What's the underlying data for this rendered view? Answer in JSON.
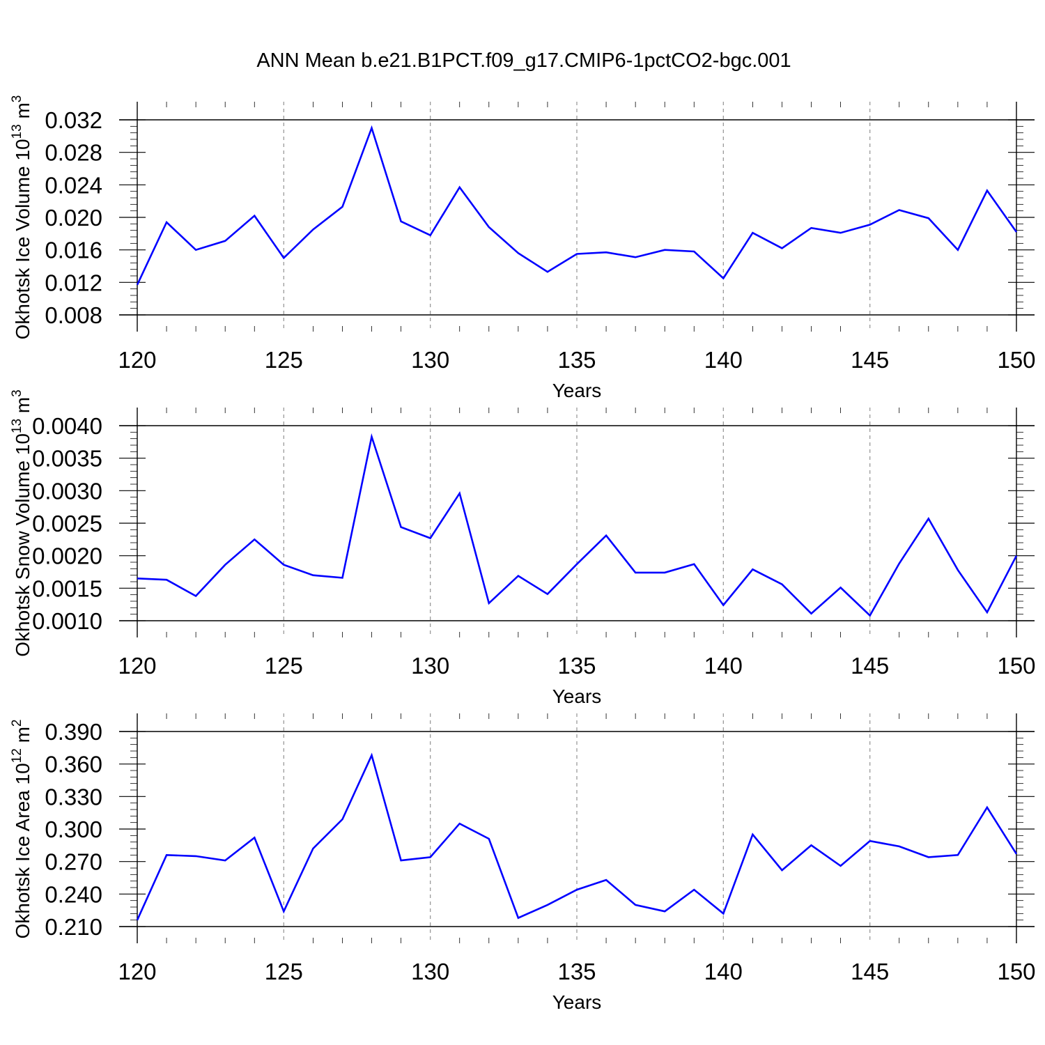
{
  "title": "ANN Mean b.e21.B1PCT.f09_g17.CMIP6-1pctCO2-bgc.001",
  "colors": {
    "series": "#0000ff",
    "frame": "#000000",
    "grid": "#9a9a9a"
  },
  "chart_data": [
    {
      "type": "line",
      "xlabel": "Years",
      "ylabel_main": "Okhotsk Ice Volume 10",
      "ylabel_sup": "13",
      "ylabel_unit": "m",
      "ylabel_unit_sup": "3",
      "xlim": [
        120,
        150
      ],
      "ylim": [
        0.008,
        0.032
      ],
      "x_ticks": [
        "120",
        "125",
        "130",
        "135",
        "140",
        "145",
        "150"
      ],
      "y_ticks": [
        "0.008",
        "0.012",
        "0.016",
        "0.020",
        "0.024",
        "0.028",
        "0.032"
      ],
      "grid": "vertical dashed at major x ticks",
      "x": [
        120,
        121,
        122,
        123,
        124,
        125,
        126,
        127,
        128,
        129,
        130,
        131,
        132,
        133,
        134,
        135,
        136,
        137,
        138,
        139,
        140,
        141,
        142,
        143,
        144,
        145,
        146,
        147,
        148,
        149,
        150
      ],
      "values": [
        0.0117,
        0.0194,
        0.016,
        0.0171,
        0.0202,
        0.015,
        0.0185,
        0.0213,
        0.031,
        0.0195,
        0.0178,
        0.0237,
        0.0188,
        0.0156,
        0.0133,
        0.0155,
        0.0157,
        0.0151,
        0.016,
        0.0158,
        0.0125,
        0.0181,
        0.0162,
        0.0187,
        0.0181,
        0.0191,
        0.0209,
        0.0199,
        0.016,
        0.0233,
        0.0182
      ]
    },
    {
      "type": "line",
      "xlabel": "Years",
      "ylabel_main": "Okhotsk Snow Volume 10",
      "ylabel_sup": "13",
      "ylabel_unit": "m",
      "ylabel_unit_sup": "3",
      "xlim": [
        120,
        150
      ],
      "ylim": [
        0.001,
        0.004
      ],
      "x_ticks": [
        "120",
        "125",
        "130",
        "135",
        "140",
        "145",
        "150"
      ],
      "y_ticks": [
        "0.0010",
        "0.0015",
        "0.0020",
        "0.0025",
        "0.0030",
        "0.0035",
        "0.0040"
      ],
      "grid": "vertical dashed at major x ticks",
      "x": [
        120,
        121,
        122,
        123,
        124,
        125,
        126,
        127,
        128,
        129,
        130,
        131,
        132,
        133,
        134,
        135,
        136,
        137,
        138,
        139,
        140,
        141,
        142,
        143,
        144,
        145,
        146,
        147,
        148,
        149,
        150
      ],
      "values": [
        0.00165,
        0.00163,
        0.00138,
        0.00186,
        0.00225,
        0.00186,
        0.0017,
        0.00166,
        0.00383,
        0.00244,
        0.00227,
        0.00296,
        0.00127,
        0.00169,
        0.00141,
        0.00187,
        0.00231,
        0.00174,
        0.00174,
        0.00187,
        0.00124,
        0.00179,
        0.00156,
        0.00111,
        0.00151,
        0.00108,
        0.00188,
        0.00257,
        0.00178,
        0.00113,
        0.002
      ]
    },
    {
      "type": "line",
      "xlabel": "Years",
      "ylabel_main": "Okhotsk Ice Area 10",
      "ylabel_sup": "12",
      "ylabel_unit": "m",
      "ylabel_unit_sup": "2",
      "xlim": [
        120,
        150
      ],
      "ylim": [
        0.21,
        0.39
      ],
      "x_ticks": [
        "120",
        "125",
        "130",
        "135",
        "140",
        "145",
        "150"
      ],
      "y_ticks": [
        "0.210",
        "0.240",
        "0.270",
        "0.300",
        "0.330",
        "0.360",
        "0.390"
      ],
      "grid": "vertical dashed at major x ticks",
      "x": [
        120,
        121,
        122,
        123,
        124,
        125,
        126,
        127,
        128,
        129,
        130,
        131,
        132,
        133,
        134,
        135,
        136,
        137,
        138,
        139,
        140,
        141,
        142,
        143,
        144,
        145,
        146,
        147,
        148,
        149,
        150
      ],
      "values": [
        0.216,
        0.276,
        0.275,
        0.271,
        0.292,
        0.224,
        0.282,
        0.309,
        0.368,
        0.271,
        0.274,
        0.305,
        0.291,
        0.218,
        0.23,
        0.244,
        0.253,
        0.23,
        0.224,
        0.244,
        0.222,
        0.295,
        0.262,
        0.285,
        0.266,
        0.289,
        0.284,
        0.274,
        0.276,
        0.32,
        0.277
      ]
    }
  ]
}
